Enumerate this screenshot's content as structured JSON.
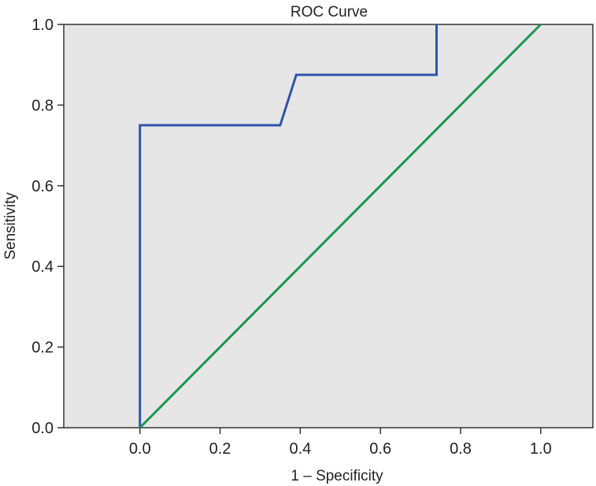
{
  "chart_data": {
    "type": "line",
    "title": "ROC Curve",
    "xlabel": "1 – Specificity",
    "ylabel": "Sensitivity",
    "xlim": [
      -0.19,
      1.13
    ],
    "ylim": [
      0,
      1
    ],
    "xticks": [
      0.0,
      0.2,
      0.4,
      0.6,
      0.8,
      1.0
    ],
    "xtick_labels": [
      "0.0",
      "0.2",
      "0.4",
      "0.6",
      "0.8",
      "1.0"
    ],
    "yticks": [
      0.0,
      0.2,
      0.4,
      0.6,
      0.8,
      1.0
    ],
    "ytick_labels": [
      "0.0",
      "0.2",
      "0.4",
      "0.6",
      "0.8",
      "1.0"
    ],
    "grid": false,
    "background_color": "#e6e6e6",
    "series": [
      {
        "color": "#2e56a8",
        "x": [
          0.0,
          0.0,
          0.35,
          0.39,
          0.74,
          0.74
        ],
        "y": [
          0.0,
          0.75,
          0.75,
          0.875,
          0.875,
          1.0
        ]
      },
      {
        "color": "#1a9650",
        "x": [
          0.0,
          1.0
        ],
        "y": [
          0.0,
          1.0
        ]
      }
    ]
  }
}
